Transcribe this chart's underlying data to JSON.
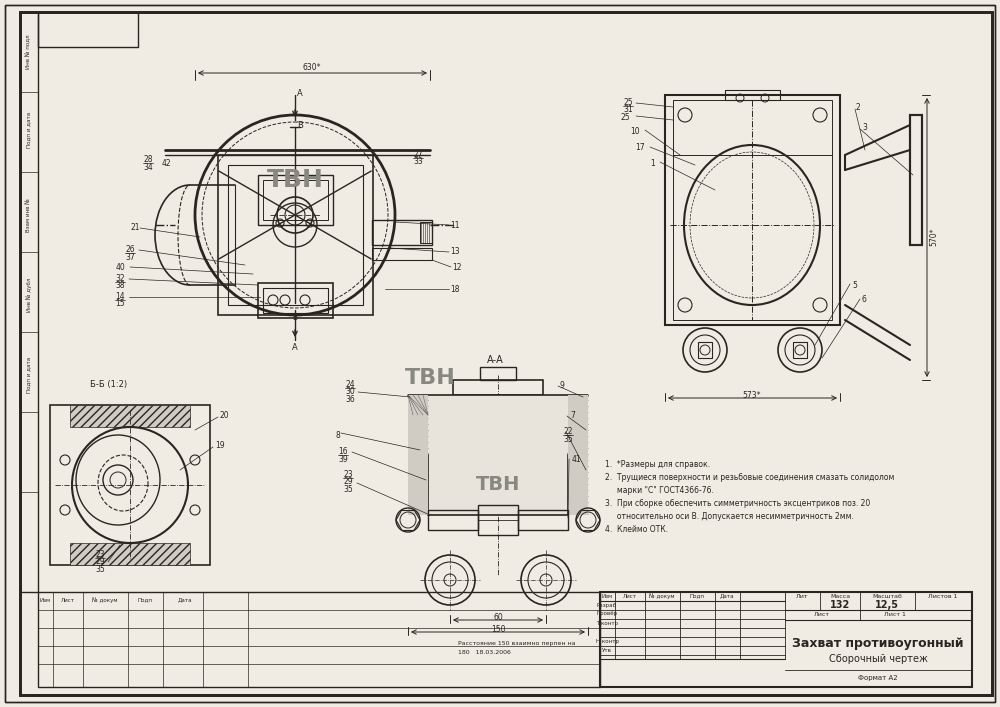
{
  "paper_color": "#f0ece4",
  "line_color": "#2a2520",
  "light_line": "#4a4540",
  "drawing_title": "Захват противоугонный",
  "drawing_subtitle": "Сборочный чертеж",
  "mass": "132",
  "scale": "12,5",
  "format": "Формат А2",
  "notes": [
    "1.  *Размеры для справок.",
    "2.  Трущиеся поверхности и резьбовые соединения смазать солидолом",
    "     марки \"С\" ГОСТ4366-76.",
    "3.  При сборке обеспечить симметричность эксцентриков поз. 20",
    "     относительно оси В. Допускается несимметричность 2мм.",
    "4.  Клеймо ОТК."
  ]
}
